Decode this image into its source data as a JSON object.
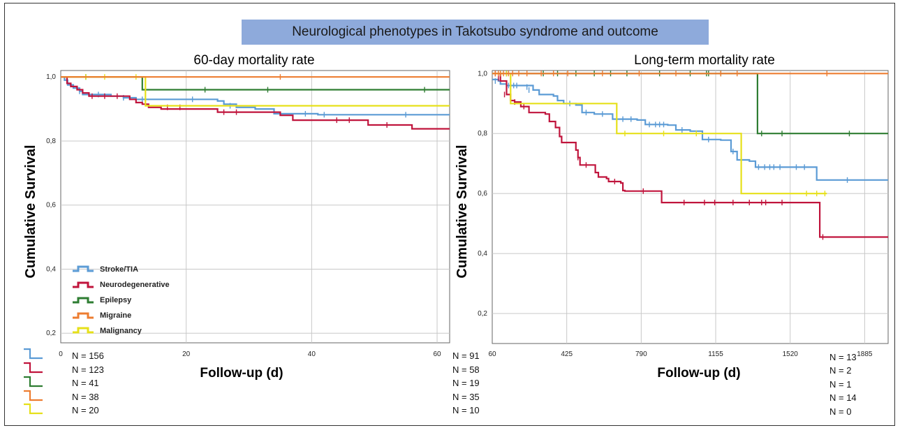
{
  "banner_title": "Neurological phenotypes in Takotsubo syndrome and outcome",
  "colors": {
    "stroke": "#5b9bd5",
    "neuro": "#c0143c",
    "epilepsy": "#2e7d32",
    "migraine": "#ed7d31",
    "malignancy": "#e6e01a",
    "grid": "#c8c8c8"
  },
  "legend": [
    "Stroke/TIA",
    "Neurodegenerative",
    "Epilepsy",
    "Migraine",
    "Malignancy"
  ],
  "chart_data": [
    {
      "type": "line",
      "step": true,
      "title": "60-day mortality rate",
      "xlabel": "Follow-up (d)",
      "ylabel": "Cumulative Survival",
      "xlim": [
        0,
        62
      ],
      "ylim": [
        0.17,
        1.02
      ],
      "xticks": [
        "0",
        "20",
        "40",
        "60"
      ],
      "xtick_values": [
        0,
        20,
        40,
        60
      ],
      "yticks": [
        "0,2",
        "0,4",
        "0,6",
        "0,8",
        "1,0"
      ],
      "ytick_values": [
        0.2,
        0.4,
        0.6,
        0.8,
        1.0
      ],
      "grid": true,
      "legend_position": "bottom-left",
      "series": [
        {
          "name": "Stroke/TIA",
          "color_key": "stroke",
          "points": [
            [
              0,
              1.0
            ],
            [
              0.6,
              0.99
            ],
            [
              1.1,
              0.975
            ],
            [
              2,
              0.965
            ],
            [
              3,
              0.955
            ],
            [
              3.5,
              0.945
            ],
            [
              7,
              0.945
            ],
            [
              8,
              0.94
            ],
            [
              10,
              0.935
            ],
            [
              12,
              0.93
            ],
            [
              24,
              0.93
            ],
            [
              25,
              0.925
            ],
            [
              26,
              0.915
            ],
            [
              28,
              0.905
            ],
            [
              31,
              0.9
            ],
            [
              34,
              0.885
            ],
            [
              40,
              0.885
            ],
            [
              41,
              0.882
            ],
            [
              55,
              0.882
            ],
            [
              62,
              0.882
            ]
          ],
          "censors": [
            [
              3,
              0.955
            ],
            [
              6,
              0.945
            ],
            [
              10,
              0.935
            ],
            [
              13,
              0.93
            ],
            [
              21,
              0.93
            ],
            [
              27,
              0.91
            ],
            [
              39,
              0.885
            ],
            [
              42,
              0.882
            ],
            [
              55,
              0.882
            ]
          ]
        },
        {
          "name": "Neurodegenerative",
          "color_key": "neuro",
          "points": [
            [
              0,
              1.0
            ],
            [
              1,
              0.98
            ],
            [
              1.6,
              0.97
            ],
            [
              2.6,
              0.96
            ],
            [
              3.5,
              0.95
            ],
            [
              4.5,
              0.94
            ],
            [
              10,
              0.94
            ],
            [
              11,
              0.93
            ],
            [
              12,
              0.92
            ],
            [
              13,
              0.915
            ],
            [
              14,
              0.905
            ],
            [
              16,
              0.9
            ],
            [
              23,
              0.9
            ],
            [
              25,
              0.89
            ],
            [
              35,
              0.88
            ],
            [
              37,
              0.865
            ],
            [
              47,
              0.865
            ],
            [
              49,
              0.85
            ],
            [
              54,
              0.85
            ],
            [
              56,
              0.838
            ],
            [
              62,
              0.838
            ]
          ],
          "censors": [
            [
              5,
              0.94
            ],
            [
              7,
              0.94
            ],
            [
              9,
              0.94
            ],
            [
              17,
              0.905
            ],
            [
              19,
              0.905
            ],
            [
              26,
              0.89
            ],
            [
              28,
              0.89
            ],
            [
              44,
              0.865
            ],
            [
              46,
              0.865
            ],
            [
              52,
              0.85
            ]
          ]
        },
        {
          "name": "Epilepsy",
          "color_key": "epilepsy",
          "points": [
            [
              0,
              1.0
            ],
            [
              13,
              1.0
            ],
            [
              13,
              0.96
            ],
            [
              62,
              0.96
            ]
          ],
          "censors": [
            [
              4,
              1.0
            ],
            [
              23,
              0.96
            ],
            [
              33,
              0.96
            ],
            [
              58,
              0.96
            ]
          ]
        },
        {
          "name": "Migraine",
          "color_key": "migraine",
          "points": [
            [
              0,
              1.0
            ],
            [
              62,
              1.0
            ]
          ],
          "censors": [
            [
              35,
              1.0
            ]
          ]
        },
        {
          "name": "Malignancy",
          "color_key": "malignancy",
          "points": [
            [
              0,
              1.0
            ],
            [
              13.5,
              1.0
            ],
            [
              13.5,
              0.91
            ],
            [
              62,
              0.91
            ]
          ],
          "censors": [
            [
              4,
              1.0
            ],
            [
              7,
              1.0
            ],
            [
              12,
              1.0
            ]
          ]
        }
      ],
      "numbers_at_risk": {
        "start": [
          "N = 156",
          "N = 123",
          "N = 41",
          "N = 38",
          "N = 20"
        ],
        "end": [
          "N = 91",
          "N = 58",
          "N = 19",
          "N = 35",
          "N = 10"
        ]
      }
    },
    {
      "type": "line",
      "step": true,
      "title": "Long-term mortality rate",
      "xlabel": "Follow-up (d)",
      "ylabel": "Cumulative Survival",
      "xlim": [
        60,
        2000
      ],
      "ylim": [
        0.1,
        1.01
      ],
      "xticks": [
        "60",
        "425",
        "790",
        "1155",
        "1520",
        "1885"
      ],
      "xtick_values": [
        60,
        425,
        790,
        1155,
        1520,
        1885
      ],
      "yticks": [
        "0,2",
        "0,4",
        "0,6",
        "0,8",
        "1,0"
      ],
      "ytick_values": [
        0.2,
        0.4,
        0.6,
        0.8,
        1.0
      ],
      "grid": true,
      "series": [
        {
          "name": "Stroke/TIA",
          "color_key": "stroke",
          "points": [
            [
              60,
              0.98
            ],
            [
              90,
              0.975
            ],
            [
              100,
              0.965
            ],
            [
              130,
              0.96
            ],
            [
              200,
              0.96
            ],
            [
              260,
              0.945
            ],
            [
              290,
              0.93
            ],
            [
              360,
              0.925
            ],
            [
              380,
              0.91
            ],
            [
              410,
              0.9
            ],
            [
              470,
              0.895
            ],
            [
              500,
              0.87
            ],
            [
              560,
              0.865
            ],
            [
              650,
              0.848
            ],
            [
              770,
              0.845
            ],
            [
              810,
              0.83
            ],
            [
              920,
              0.828
            ],
            [
              960,
              0.812
            ],
            [
              1030,
              0.808
            ],
            [
              1090,
              0.78
            ],
            [
              1180,
              0.778
            ],
            [
              1230,
              0.74
            ],
            [
              1260,
              0.712
            ],
            [
              1320,
              0.708
            ],
            [
              1350,
              0.688
            ],
            [
              1630,
              0.688
            ],
            [
              1650,
              0.645
            ],
            [
              2000,
              0.645
            ]
          ],
          "censors": [
            [
              75,
              0.975
            ],
            [
              140,
              0.96
            ],
            [
              165,
              0.96
            ],
            [
              180,
              0.96
            ],
            [
              230,
              0.955
            ],
            [
              240,
              0.945
            ],
            [
              440,
              0.9
            ],
            [
              520,
              0.87
            ],
            [
              600,
              0.865
            ],
            [
              700,
              0.848
            ],
            [
              740,
              0.848
            ],
            [
              830,
              0.83
            ],
            [
              860,
              0.83
            ],
            [
              880,
              0.83
            ],
            [
              900,
              0.83
            ],
            [
              990,
              0.812
            ],
            [
              1120,
              0.78
            ],
            [
              1240,
              0.74
            ],
            [
              1365,
              0.688
            ],
            [
              1395,
              0.688
            ],
            [
              1420,
              0.688
            ],
            [
              1440,
              0.688
            ],
            [
              1470,
              0.688
            ],
            [
              1550,
              0.688
            ],
            [
              1590,
              0.688
            ],
            [
              1800,
              0.645
            ]
          ]
        },
        {
          "name": "Neurodegenerative",
          "color_key": "neuro",
          "points": [
            [
              60,
              1.0
            ],
            [
              100,
              0.975
            ],
            [
              130,
              0.93
            ],
            [
              150,
              0.91
            ],
            [
              170,
              0.905
            ],
            [
              200,
              0.89
            ],
            [
              240,
              0.87
            ],
            [
              320,
              0.865
            ],
            [
              340,
              0.84
            ],
            [
              370,
              0.82
            ],
            [
              390,
              0.79
            ],
            [
              400,
              0.77
            ],
            [
              460,
              0.77
            ],
            [
              470,
              0.745
            ],
            [
              480,
              0.72
            ],
            [
              490,
              0.695
            ],
            [
              550,
              0.695
            ],
            [
              565,
              0.67
            ],
            [
              580,
              0.655
            ],
            [
              620,
              0.65
            ],
            [
              630,
              0.64
            ],
            [
              690,
              0.635
            ],
            [
              700,
              0.61
            ],
            [
              710,
              0.608
            ],
            [
              880,
              0.608
            ],
            [
              890,
              0.57
            ],
            [
              1650,
              0.57
            ],
            [
              1665,
              0.455
            ],
            [
              2000,
              0.455
            ]
          ],
          "censors": [
            [
              75,
              1.0
            ],
            [
              90,
              0.985
            ],
            [
              120,
              0.93
            ],
            [
              170,
              0.905
            ],
            [
              215,
              0.89
            ],
            [
              480,
              0.72
            ],
            [
              520,
              0.695
            ],
            [
              660,
              0.64
            ],
            [
              800,
              0.608
            ],
            [
              1000,
              0.57
            ],
            [
              1100,
              0.57
            ],
            [
              1150,
              0.57
            ],
            [
              1240,
              0.57
            ],
            [
              1320,
              0.57
            ],
            [
              1380,
              0.57
            ],
            [
              1400,
              0.57
            ],
            [
              1480,
              0.57
            ],
            [
              1680,
              0.455
            ]
          ]
        },
        {
          "name": "Epilepsy",
          "color_key": "epilepsy",
          "points": [
            [
              60,
              1.0
            ],
            [
              1360,
              1.0
            ],
            [
              1360,
              0.8
            ],
            [
              2000,
              0.8
            ]
          ],
          "censors": [
            [
              130,
              1.0
            ],
            [
              310,
              1.0
            ],
            [
              380,
              1.0
            ],
            [
              470,
              1.0
            ],
            [
              560,
              1.0
            ],
            [
              640,
              1.0
            ],
            [
              720,
              1.0
            ],
            [
              880,
              1.0
            ],
            [
              1030,
              1.0
            ],
            [
              1110,
              1.0
            ],
            [
              1120,
              1.0
            ],
            [
              1180,
              1.0
            ],
            [
              1380,
              0.8
            ],
            [
              1480,
              0.8
            ],
            [
              1810,
              0.8
            ]
          ]
        },
        {
          "name": "Migraine",
          "color_key": "migraine",
          "points": [
            [
              60,
              1.0
            ],
            [
              2000,
              1.0
            ]
          ],
          "censors": [
            [
              75,
              1.0
            ],
            [
              90,
              1.0
            ],
            [
              100,
              1.0
            ],
            [
              115,
              1.0
            ],
            [
              140,
              1.0
            ],
            [
              160,
              1.0
            ],
            [
              190,
              1.0
            ],
            [
              230,
              1.0
            ],
            [
              300,
              1.0
            ],
            [
              360,
              1.0
            ],
            [
              430,
              1.0
            ],
            [
              600,
              1.0
            ],
            [
              780,
              1.0
            ],
            [
              960,
              1.0
            ],
            [
              1180,
              1.0
            ],
            [
              1260,
              1.0
            ],
            [
              1700,
              1.0
            ]
          ]
        },
        {
          "name": "Malignancy",
          "color_key": "malignancy",
          "points": [
            [
              60,
              1.0
            ],
            [
              150,
              1.0
            ],
            [
              150,
              0.9
            ],
            [
              670,
              0.9
            ],
            [
              670,
              0.8
            ],
            [
              1280,
              0.8
            ],
            [
              1280,
              0.6
            ],
            [
              1700,
              0.6
            ]
          ],
          "censors": [
            [
              100,
              1.0
            ],
            [
              130,
              1.0
            ],
            [
              710,
              0.8
            ],
            [
              900,
              0.8
            ],
            [
              1060,
              0.8
            ],
            [
              1600,
              0.6
            ],
            [
              1650,
              0.6
            ],
            [
              1690,
              0.6
            ]
          ]
        }
      ],
      "numbers_at_risk": {
        "end": [
          "N = 13",
          "N = 2",
          "N = 1",
          "N = 14",
          "N = 0"
        ]
      }
    }
  ]
}
